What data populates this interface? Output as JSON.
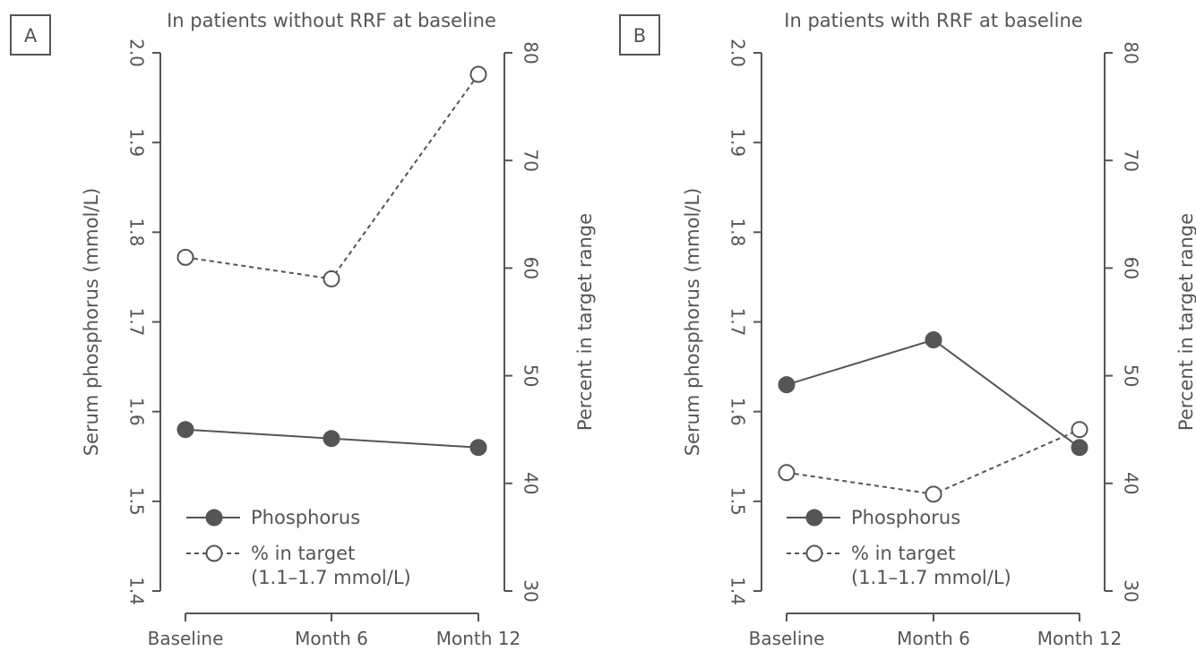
{
  "colors": {
    "phosphorus": "#555555",
    "percent_target": "#555555",
    "axis": "#555555",
    "background": "#ffffff"
  },
  "chart_data": [
    {
      "panel": "A",
      "type": "line",
      "title": "In patients without RRF at baseline",
      "categories": [
        "Baseline",
        "Month 6",
        "Month 12"
      ],
      "ylabel": "Serum phosphorus (mmol/L)",
      "ylim": [
        1.4,
        2.0
      ],
      "yticks": [
        "1.4",
        "1.5",
        "1.6",
        "1.7",
        "1.8",
        "1.9",
        "2.0"
      ],
      "y2label": "Percent in target range",
      "y2lim": [
        30,
        80
      ],
      "y2ticks": [
        "30",
        "40",
        "50",
        "60",
        "70",
        "80"
      ],
      "series": [
        {
          "name": "Phosphorus",
          "axis": "left",
          "style": "solid-filled",
          "values": [
            1.58,
            1.57,
            1.56
          ]
        },
        {
          "name": "% in target",
          "name_line2": "(1.1–1.7 mmol/L)",
          "axis": "right",
          "style": "dashed-open",
          "values": [
            61,
            59,
            78
          ]
        }
      ],
      "legend": "bottom-left",
      "grid": false
    },
    {
      "panel": "B",
      "type": "line",
      "title": "In patients with RRF at baseline",
      "categories": [
        "Baseline",
        "Month 6",
        "Month 12"
      ],
      "ylabel": "Serum phosphorus (mmol/L)",
      "ylim": [
        1.4,
        2.0
      ],
      "yticks": [
        "1.4",
        "1.5",
        "1.6",
        "1.7",
        "1.8",
        "1.9",
        "2.0"
      ],
      "y2label": "Percent in target range",
      "y2lim": [
        30,
        80
      ],
      "y2ticks": [
        "30",
        "40",
        "50",
        "60",
        "70",
        "80"
      ],
      "series": [
        {
          "name": "Phosphorus",
          "axis": "left",
          "style": "solid-filled",
          "values": [
            1.63,
            1.68,
            1.56
          ]
        },
        {
          "name": "% in target",
          "name_line2": "(1.1–1.7 mmol/L)",
          "axis": "right",
          "style": "dashed-open",
          "values": [
            41,
            39,
            45
          ]
        }
      ],
      "legend": "bottom-left",
      "grid": false
    }
  ]
}
